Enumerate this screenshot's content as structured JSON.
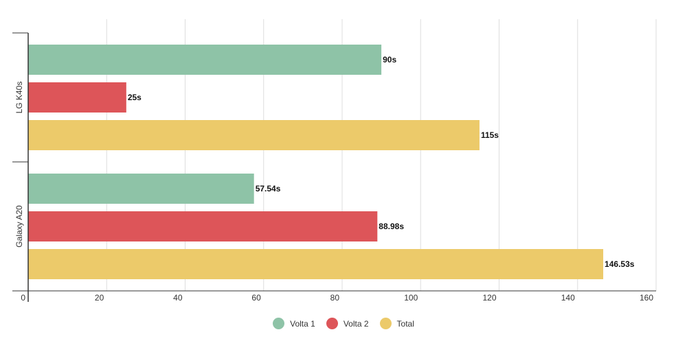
{
  "chart_data": {
    "type": "bar",
    "orientation": "horizontal",
    "categories": [
      "LG K40s",
      "Galaxy A20"
    ],
    "series": [
      {
        "name": "Volta 1",
        "color": "#8ec3a7",
        "values": [
          90,
          57.54
        ],
        "labels": [
          "90s",
          "57.54s"
        ]
      },
      {
        "name": "Volta 2",
        "color": "#dd5559",
        "values": [
          25,
          88.98
        ],
        "labels": [
          "25s",
          "88.98s"
        ]
      },
      {
        "name": "Total",
        "color": "#ecca6a",
        "values": [
          115,
          146.53
        ],
        "labels": [
          "115s",
          "146.53s"
        ]
      }
    ],
    "x_ticks": [
      "0",
      "20",
      "40",
      "60",
      "80",
      "100",
      "120",
      "140",
      "160"
    ],
    "xlim": [
      0,
      160
    ],
    "grid": true,
    "legend_position": "bottom",
    "title": "",
    "xlabel": "",
    "ylabel": ""
  }
}
